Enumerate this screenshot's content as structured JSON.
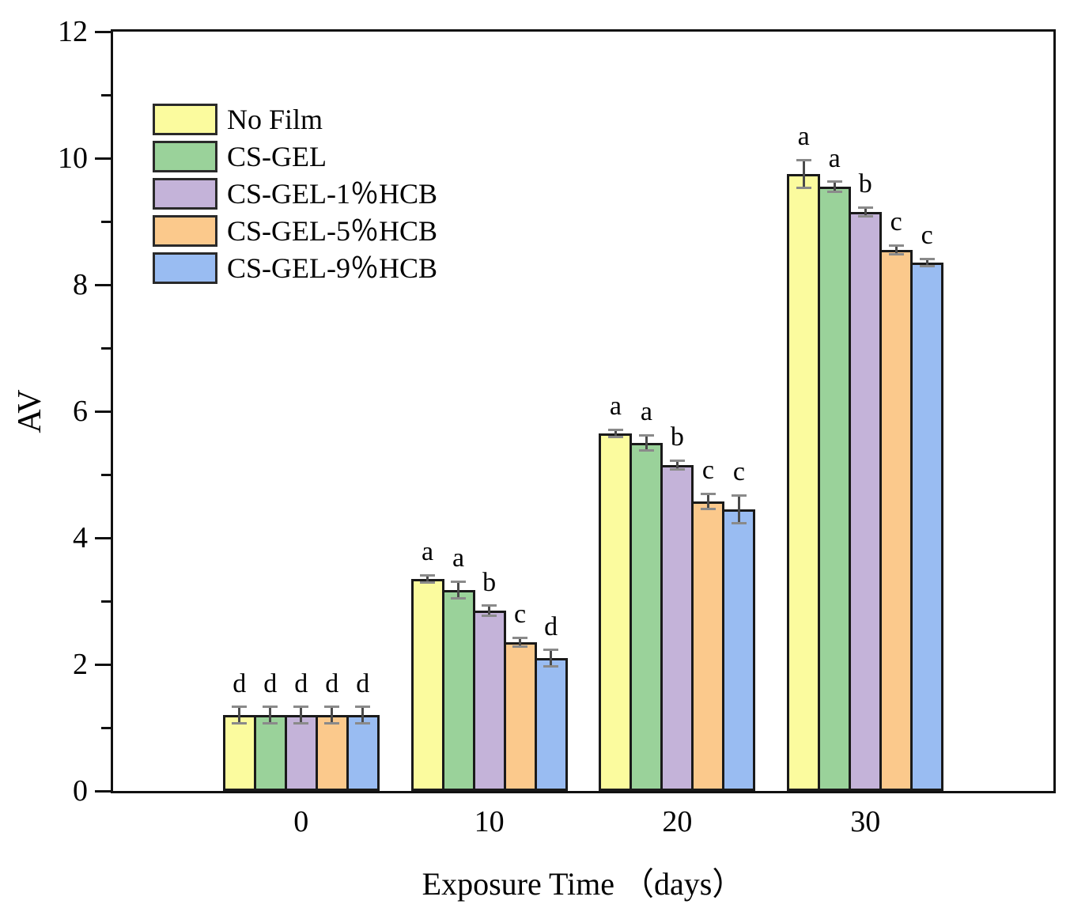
{
  "figure": {
    "background": "#ffffff",
    "frame_color": "#111111",
    "bar_border_color": "#1a1a1a",
    "errorbar_line_color": "#4a4a4a",
    "errorbar_cap_color": "#8a8a8a",
    "text_color": "#000000"
  },
  "chart_data": {
    "type": "bar",
    "title": "",
    "xlabel": "Exposure Time （days）",
    "ylabel": "AV",
    "ylim": [
      0,
      12
    ],
    "yticks_major": [
      0,
      2,
      4,
      6,
      8,
      10,
      12
    ],
    "yticks_minor": [
      1,
      3,
      5,
      7,
      9,
      11
    ],
    "categories": [
      "0",
      "10",
      "20",
      "30"
    ],
    "grid": false,
    "legend_position": "upper-left-inside",
    "series": [
      {
        "name": "No Film",
        "color": "#FBFB9E",
        "values": [
          1.2,
          3.35,
          5.65,
          9.75
        ],
        "errors": [
          0.13,
          0.06,
          0.06,
          0.22
        ],
        "sig_letters": [
          "d",
          "a",
          "a",
          "a"
        ]
      },
      {
        "name": "CS-GEL",
        "color": "#9AD29A",
        "values": [
          1.2,
          3.18,
          5.5,
          9.55
        ],
        "errors": [
          0.13,
          0.13,
          0.12,
          0.08
        ],
        "sig_letters": [
          "d",
          "a",
          "a",
          "a"
        ]
      },
      {
        "name": "CS-GEL-1％HCB",
        "color": "#C4B3D9",
        "values": [
          1.2,
          2.85,
          5.15,
          9.15
        ],
        "errors": [
          0.13,
          0.08,
          0.07,
          0.07
        ],
        "sig_letters": [
          "d",
          "b",
          "b",
          "b"
        ]
      },
      {
        "name": "CS-GEL-5％HCB",
        "color": "#FBC98C",
        "values": [
          1.2,
          2.35,
          4.58,
          8.55
        ],
        "errors": [
          0.13,
          0.07,
          0.12,
          0.07
        ],
        "sig_letters": [
          "d",
          "c",
          "c",
          "c"
        ]
      },
      {
        "name": "CS-GEL-9％HCB",
        "color": "#99BCF2",
        "values": [
          1.2,
          2.1,
          4.45,
          8.35
        ],
        "errors": [
          0.13,
          0.13,
          0.22,
          0.06
        ],
        "sig_letters": [
          "d",
          "d",
          "c",
          "c"
        ]
      }
    ]
  }
}
